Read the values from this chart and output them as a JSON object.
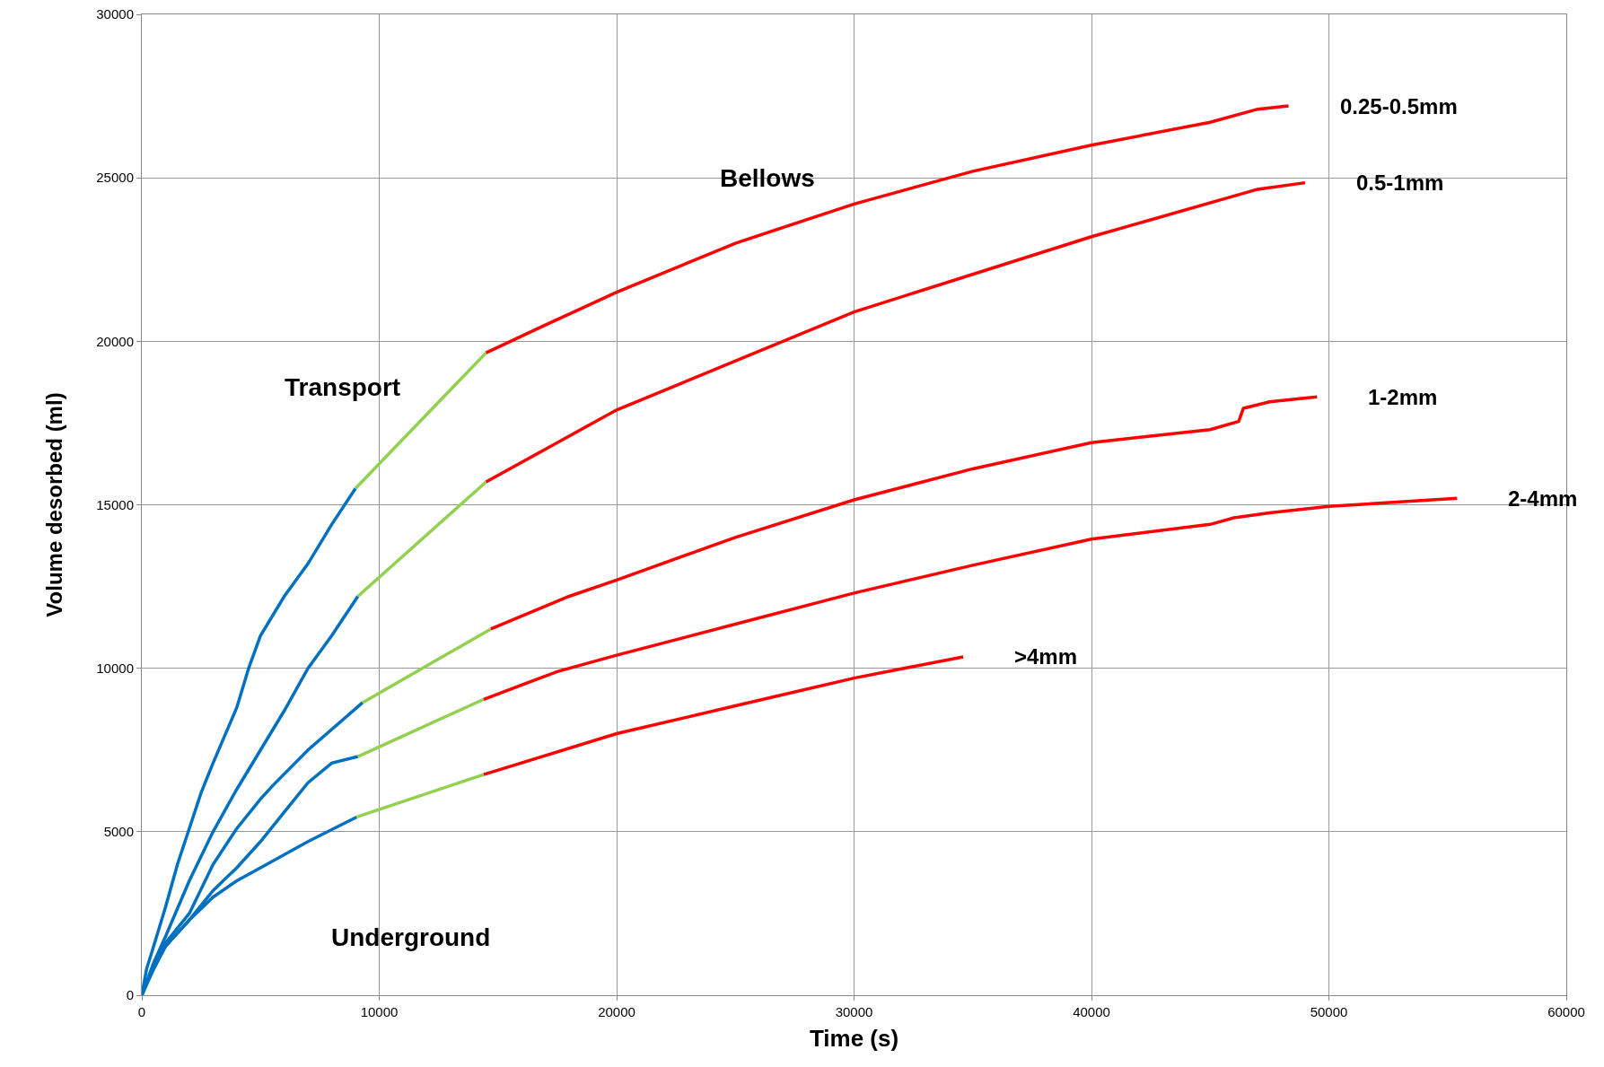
{
  "chart_data": {
    "type": "line",
    "xlabel": "Time (s)",
    "ylabel": "Volume desorbed (ml)",
    "xlim": [
      0,
      60000
    ],
    "xticks": [
      0,
      10000,
      20000,
      30000,
      40000,
      50000,
      60000
    ],
    "ylim": [
      0,
      30000
    ],
    "yticks": [
      0,
      5000,
      10000,
      15000,
      20000,
      25000,
      30000
    ],
    "grid": true,
    "legend": false,
    "marker": "none",
    "line_style": "solid",
    "annotations": [
      "Underground",
      "Transport",
      "Bellows"
    ],
    "series": [
      {
        "color": "#0070c0",
        "x": [
          0,
          200,
          500,
          1000,
          1500,
          2000,
          2500,
          3000,
          4000,
          4500,
          5000,
          6000,
          7000,
          8000,
          9000
        ],
        "values": [
          0,
          800,
          1500,
          2700,
          4000,
          5100,
          6200,
          7100,
          8800,
          10000,
          11000,
          12200,
          13200,
          14400,
          15500
        ]
      },
      {
        "color": "#92d050",
        "x": [
          9000,
          14500
        ],
        "values": [
          15500,
          19650
        ]
      },
      {
        "name": "0.25-0.5mm",
        "color": "#ff0000",
        "x": [
          14500,
          17000,
          20000,
          25000,
          30000,
          35000,
          40000,
          45000,
          47000,
          48300
        ],
        "values": [
          19650,
          20500,
          21500,
          23000,
          24200,
          25200,
          26000,
          26700,
          27100,
          27200
        ]
      },
      {
        "color": "#0070c0",
        "x": [
          0,
          500,
          1000,
          2000,
          3000,
          4000,
          5000,
          6000,
          7000,
          8000,
          9100
        ],
        "values": [
          0,
          1000,
          1800,
          3500,
          5000,
          6300,
          7500,
          8700,
          10000,
          11000,
          12200
        ]
      },
      {
        "color": "#92d050",
        "x": [
          9100,
          14500
        ],
        "values": [
          12200,
          15700
        ]
      },
      {
        "name": "0.5-1mm",
        "color": "#ff0000",
        "x": [
          14500,
          20000,
          30000,
          40000,
          47000,
          49000
        ],
        "values": [
          15700,
          17900,
          20900,
          23200,
          24650,
          24850
        ]
      },
      {
        "color": "#0070c0",
        "x": [
          0,
          500,
          1000,
          2000,
          3000,
          4000,
          5000,
          5500,
          7000,
          9300
        ],
        "values": [
          0,
          900,
          1600,
          2500,
          4000,
          5100,
          6000,
          6400,
          7500,
          8950
        ]
      },
      {
        "color": "#92d050",
        "x": [
          9300,
          14700
        ],
        "values": [
          8950,
          11200
        ]
      },
      {
        "name": "1-2mm",
        "color": "#ff0000",
        "x": [
          14700,
          18000,
          20000,
          25000,
          30000,
          35000,
          40000,
          45000,
          46200,
          46400,
          47500,
          49500
        ],
        "values": [
          11200,
          12200,
          12700,
          14000,
          15150,
          16100,
          16900,
          17300,
          17550,
          17950,
          18150,
          18300
        ]
      },
      {
        "color": "#0070c0",
        "x": [
          0,
          500,
          1000,
          2000,
          3000,
          4000,
          5000,
          6000,
          7000,
          8000,
          9100
        ],
        "values": [
          0,
          800,
          1500,
          2300,
          3200,
          3900,
          4700,
          5600,
          6500,
          7100,
          7300
        ]
      },
      {
        "color": "#92d050",
        "x": [
          9100,
          14400
        ],
        "values": [
          7300,
          9050
        ]
      },
      {
        "name": "2-4mm",
        "color": "#ff0000",
        "x": [
          14400,
          17500,
          20000,
          25000,
          30000,
          35000,
          40000,
          45000,
          46000,
          47500,
          50000,
          55400
        ],
        "values": [
          9050,
          9900,
          10400,
          11350,
          12300,
          13150,
          13950,
          14400,
          14600,
          14750,
          14950,
          15200
        ]
      },
      {
        "color": "#0070c0",
        "x": [
          0,
          500,
          1000,
          2000,
          3000,
          4000,
          5000,
          7000,
          9050
        ],
        "values": [
          0,
          900,
          1500,
          2300,
          3000,
          3500,
          3900,
          4700,
          5450
        ]
      },
      {
        "color": "#92d050",
        "x": [
          9050,
          14400
        ],
        "values": [
          5450,
          6750
        ]
      },
      {
        "name": ">4mm",
        "color": "#ff0000",
        "x": [
          14400,
          20000,
          25000,
          30000,
          34600
        ],
        "values": [
          6750,
          8000,
          8850,
          9700,
          10350
        ]
      }
    ]
  }
}
